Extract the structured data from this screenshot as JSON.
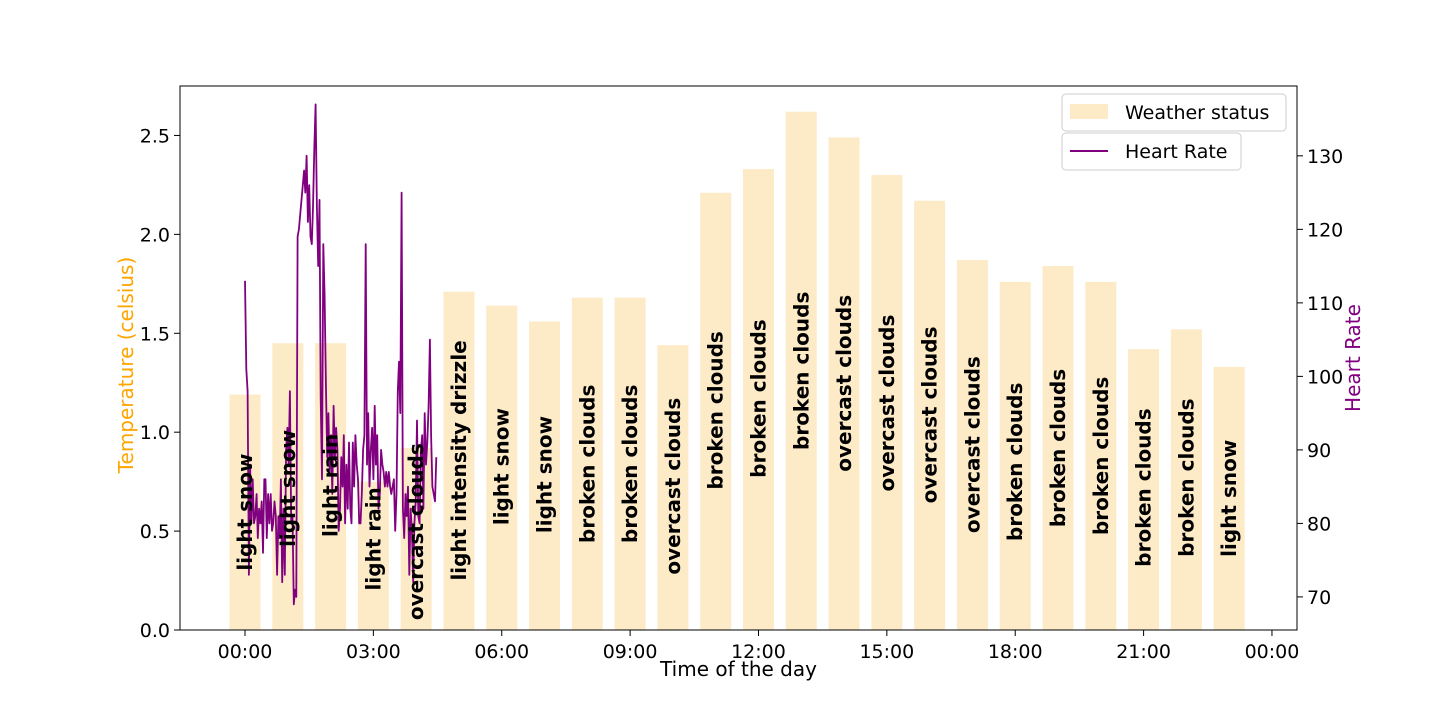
{
  "chart_data": {
    "type": "bar",
    "xlabel": "Time of the day",
    "x_ticks": [
      "00:00",
      "03:00",
      "06:00",
      "09:00",
      "12:00",
      "15:00",
      "18:00",
      "21:00",
      "00:00"
    ],
    "left_axis": {
      "label": "Temperature (celsius)",
      "color": "#ffa500",
      "ylim": [
        0,
        2.75
      ],
      "ticks": [
        0.0,
        0.5,
        1.0,
        1.5,
        2.0,
        2.5
      ],
      "tick_labels": [
        "0.0",
        "0.5",
        "1.0",
        "1.5",
        "2.0",
        "2.5"
      ]
    },
    "right_axis": {
      "label": "Heart Rate",
      "color": "#800080",
      "ylim": [
        65.5,
        139.5
      ],
      "ticks": [
        70,
        80,
        90,
        100,
        110,
        120,
        130
      ],
      "tick_labels": [
        "70",
        "80",
        "90",
        "100",
        "110",
        "120",
        "130"
      ]
    },
    "bars": {
      "name": "Weather status",
      "color": "#fdebc8",
      "x_hours": [
        0,
        1,
        2,
        3,
        4,
        5,
        6,
        7,
        8,
        9,
        10,
        11,
        12,
        13,
        14,
        15,
        16,
        17,
        18,
        19,
        20,
        21,
        22,
        23
      ],
      "temperature": [
        1.19,
        1.45,
        1.45,
        0.75,
        0.92,
        1.71,
        1.64,
        1.56,
        1.68,
        1.68,
        1.44,
        2.21,
        2.33,
        2.62,
        2.49,
        2.3,
        2.17,
        1.87,
        1.76,
        1.84,
        1.76,
        1.42,
        1.52,
        1.33
      ],
      "labels": [
        "light snow",
        "light snow",
        "light rain",
        "light rain",
        "overcast clouds",
        "light intensity drizzle",
        "light snow",
        "light snow",
        "broken clouds",
        "broken clouds",
        "overcast clouds",
        "broken clouds",
        "broken clouds",
        "broken clouds",
        "overcast clouds",
        "overcast clouds",
        "overcast clouds",
        "overcast clouds",
        "broken clouds",
        "broken clouds",
        "broken clouds",
        "broken clouds",
        "broken clouds",
        "light snow"
      ],
      "label_height": [
        0.3,
        0.42,
        0.47,
        0.2,
        0.05,
        0.25,
        0.53,
        0.49,
        0.44,
        0.44,
        0.28,
        0.71,
        0.77,
        0.91,
        0.8,
        0.7,
        0.64,
        0.49,
        0.45,
        0.52,
        0.48,
        0.32,
        0.37,
        0.37
      ]
    },
    "line": {
      "name": "Heart Rate",
      "color": "#800080",
      "x_hours": [
        0.0,
        0.03,
        0.06,
        0.09,
        0.12,
        0.15,
        0.18,
        0.21,
        0.24,
        0.27,
        0.3,
        0.33,
        0.36,
        0.39,
        0.42,
        0.45,
        0.48,
        0.51,
        0.54,
        0.57,
        0.6,
        0.63,
        0.66,
        0.69,
        0.72,
        0.75,
        0.78,
        0.81,
        0.84,
        0.87,
        0.9,
        0.93,
        0.96,
        0.99,
        1.02,
        1.05,
        1.08,
        1.11,
        1.14,
        1.17,
        1.2,
        1.23,
        1.26,
        1.29,
        1.32,
        1.35,
        1.38,
        1.41,
        1.44,
        1.47,
        1.5,
        1.53,
        1.56,
        1.59,
        1.62,
        1.65,
        1.68,
        1.71,
        1.74,
        1.77,
        1.8,
        1.83,
        1.86,
        1.89,
        1.92,
        1.95,
        1.98,
        2.01,
        2.04,
        2.07,
        2.1,
        2.13,
        2.16,
        2.19,
        2.22,
        2.25,
        2.28,
        2.31,
        2.34,
        2.37,
        2.4,
        2.43,
        2.46,
        2.49,
        2.52,
        2.55,
        2.58,
        2.61,
        2.64,
        2.67,
        2.7,
        2.73,
        2.76,
        2.79,
        2.82,
        2.85,
        2.88,
        2.91,
        2.94,
        2.97,
        3.0,
        3.03,
        3.06,
        3.09,
        3.12,
        3.15,
        3.18,
        3.21,
        3.24,
        3.27,
        3.3,
        3.33,
        3.36,
        3.39,
        3.42,
        3.45,
        3.48,
        3.51,
        3.54,
        3.57,
        3.6,
        3.63,
        3.66,
        3.69,
        3.72,
        3.75,
        3.78,
        3.81,
        3.84,
        3.87,
        3.9,
        3.93,
        3.96,
        3.99,
        4.02,
        4.05,
        4.08,
        4.11,
        4.14,
        4.17,
        4.2,
        4.23,
        4.26,
        4.29,
        4.32,
        4.35,
        4.38,
        4.41,
        4.44,
        4.47,
        4.5,
        4.53,
        4.56,
        4.59
      ],
      "heart_rate": [
        113,
        101,
        98,
        73,
        88,
        80,
        86,
        80,
        81,
        84,
        78,
        82,
        80,
        83,
        76,
        86,
        86,
        78,
        84,
        80,
        84,
        79,
        80,
        83,
        81,
        73,
        81,
        78,
        86,
        72,
        82,
        73,
        90,
        93,
        88,
        98,
        80,
        81,
        69,
        71,
        70,
        119,
        120,
        122,
        124,
        126,
        128,
        125,
        130,
        121,
        126,
        119,
        118,
        123,
        131,
        137,
        123,
        115,
        124,
        97,
        86,
        118,
        111,
        99,
        89,
        95,
        87,
        92,
        84,
        96,
        89,
        93,
        90,
        79,
        82,
        89,
        85,
        92,
        80,
        88,
        82,
        91,
        82,
        80,
        91,
        85,
        92,
        88,
        86,
        80,
        80,
        84,
        90,
        92,
        118,
        88,
        95,
        85,
        90,
        93,
        86,
        96,
        88,
        92,
        82,
        84,
        90,
        88,
        87,
        85,
        87,
        85,
        87,
        85,
        84,
        85,
        86,
        79,
        84,
        98,
        102,
        95,
        125,
        82,
        78,
        84,
        81,
        85,
        73,
        82,
        79,
        72,
        80,
        83,
        94,
        81,
        80,
        90,
        92,
        82,
        95,
        88,
        91,
        96,
        105,
        92,
        85,
        84,
        83,
        89
      ]
    },
    "legend": {
      "position": "top-right",
      "entries": [
        "Weather status",
        "Heart Rate"
      ]
    }
  }
}
